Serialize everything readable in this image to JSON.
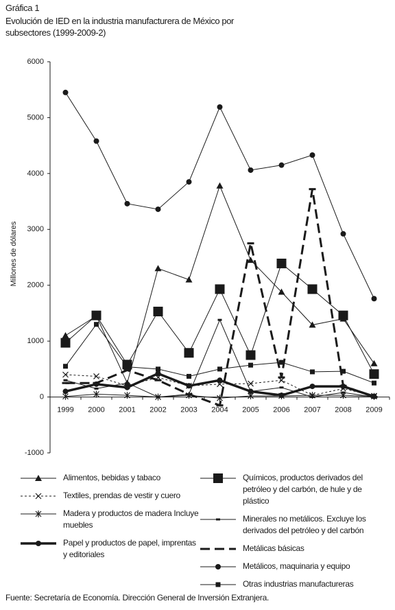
{
  "chart_data": {
    "type": "line",
    "label": "Gráfica 1",
    "title": "Evolución de IED en la industria manufacturera de México por subsectores (1999-2009-2)",
    "y_label": "Millones de dólares",
    "source": "Fuente: Secretaría de Economía. Dirección General de Inversión Extranjera.",
    "categories": [
      "1999",
      "2000",
      "2001",
      "2002",
      "2003",
      "2004",
      "2005",
      "2006",
      "2007",
      "2008",
      "2009"
    ],
    "ylim": [
      -1000,
      6000
    ],
    "yticks": [
      -1000,
      0,
      1000,
      2000,
      3000,
      4000,
      5000,
      6000
    ],
    "series": [
      {
        "name": "Alimentos, bebidas y tabaco",
        "color": "#1a1a1a",
        "marker": "triangle",
        "dash": "solid",
        "width": 1,
        "values": [
          1100,
          1450,
          250,
          2300,
          2100,
          3780,
          2450,
          1880,
          1290,
          1400,
          600
        ]
      },
      {
        "name": "Textiles, prendas de vestir y cuero",
        "color": "#1a1a1a",
        "marker": "x",
        "dash": "dotted",
        "width": 1,
        "values": [
          400,
          370,
          200,
          350,
          200,
          230,
          240,
          300,
          30,
          150,
          20
        ]
      },
      {
        "name": "Madera y productos de madera Incluye muebles",
        "color": "#1a1a1a",
        "marker": "star",
        "dash": "solid",
        "width": 1,
        "values": [
          10,
          50,
          30,
          0,
          30,
          -20,
          20,
          20,
          30,
          30,
          10
        ]
      },
      {
        "name": "Papel y productos de papel, imprentas y editoriales",
        "color": "#1a1a1a",
        "marker": "circle",
        "dash": "solid",
        "width": 3.5,
        "values": [
          100,
          230,
          170,
          420,
          200,
          300,
          100,
          30,
          190,
          190,
          10
        ]
      },
      {
        "name": "Químicos, productos derivados del petróleo y del carbón, de hule y de plástico",
        "color": "#1a1a1a",
        "marker": "bigsquare",
        "dash": "solid",
        "width": 1,
        "values": [
          970,
          1460,
          580,
          1530,
          790,
          1930,
          750,
          2390,
          1930,
          1460,
          410
        ]
      },
      {
        "name": "Minerales no metálicos. Excluye los derivados del petróleo y del carbón",
        "color": "#1a1a1a",
        "marker": "dash",
        "dash": "solid",
        "width": 1,
        "values": [
          300,
          150,
          250,
          0,
          50,
          1380,
          100,
          170,
          0,
          80,
          0
        ]
      },
      {
        "name": "Metálicas básicas",
        "color": "#1a1a1a",
        "marker": "hline",
        "dash": "long",
        "width": 3,
        "values": [
          250,
          250,
          480,
          300,
          50,
          -150,
          2750,
          350,
          3720,
          200,
          0
        ]
      },
      {
        "name": "Metálicos, maquinaria y equipo",
        "color": "#1a1a1a",
        "marker": "circle",
        "dash": "solid",
        "width": 1,
        "values": [
          5450,
          4580,
          3460,
          3360,
          3850,
          5190,
          4060,
          4150,
          4330,
          2920,
          1760
        ]
      },
      {
        "name": "Otras industrias manufactureras",
        "color": "#1a1a1a",
        "marker": "square",
        "dash": "solid",
        "width": 1,
        "values": [
          550,
          1300,
          540,
          500,
          370,
          500,
          570,
          620,
          450,
          460,
          250
        ]
      }
    ]
  }
}
